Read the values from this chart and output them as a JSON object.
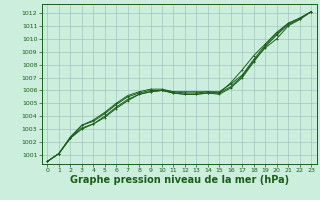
{
  "background_color": "#cceedd",
  "grid_color": "#99bbbb",
  "line_color": "#1a5e1a",
  "marker_color": "#1a5e1a",
  "xlabel": "Graphe pression niveau de la mer (hPa)",
  "xlabel_fontsize": 7,
  "xlim": [
    -0.5,
    23.5
  ],
  "ylim": [
    1000.3,
    1012.7
  ],
  "yticks": [
    1001,
    1002,
    1003,
    1004,
    1005,
    1006,
    1007,
    1008,
    1009,
    1010,
    1011,
    1012
  ],
  "xticks": [
    0,
    1,
    2,
    3,
    4,
    5,
    6,
    7,
    8,
    9,
    10,
    11,
    12,
    13,
    14,
    15,
    16,
    17,
    18,
    19,
    20,
    21,
    22,
    23
  ],
  "series": [
    [
      1000.5,
      1001.1,
      1002.3,
      1003.1,
      1003.4,
      1003.9,
      1004.6,
      1005.2,
      1005.7,
      1005.9,
      1006.0,
      1005.8,
      1005.7,
      1005.7,
      1005.8,
      1005.7,
      1006.2,
      1007.0,
      1008.2,
      1009.4,
      1010.3,
      1011.1,
      1011.5,
      1012.1
    ],
    [
      1000.5,
      1001.1,
      1002.3,
      1003.3,
      1003.6,
      1004.2,
      1004.9,
      1005.5,
      1005.8,
      1006.0,
      1006.0,
      1005.9,
      1005.8,
      1005.8,
      1005.9,
      1005.8,
      1006.3,
      1007.1,
      1008.3,
      1009.3,
      1010.0,
      1011.0,
      1011.5,
      1012.1
    ],
    [
      1000.5,
      1001.1,
      1002.4,
      1003.3,
      1003.7,
      1004.3,
      1005.0,
      1005.6,
      1005.9,
      1006.1,
      1006.1,
      1005.9,
      1005.9,
      1005.9,
      1005.9,
      1005.9,
      1006.5,
      1007.2,
      1008.4,
      1009.5,
      1010.4,
      1011.2,
      1011.6,
      1012.1
    ],
    [
      1000.5,
      1001.1,
      1002.3,
      1003.0,
      1003.4,
      1004.0,
      1004.7,
      1005.3,
      1005.7,
      1005.9,
      1006.0,
      1005.8,
      1005.7,
      1005.7,
      1005.8,
      1005.8,
      1006.6,
      1007.6,
      1008.7,
      1009.6,
      1010.5,
      1011.2,
      1011.6,
      1012.1
    ]
  ]
}
